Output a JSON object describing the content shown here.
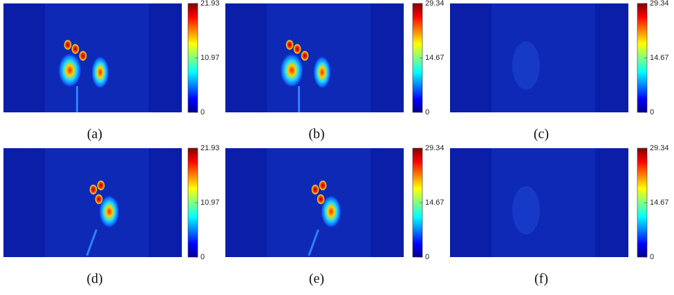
{
  "panels": [
    {
      "caption": "(a)",
      "colorbar_ticks": [
        "21.93",
        "10.97",
        "0"
      ]
    },
    {
      "caption": "(b)",
      "colorbar_ticks": [
        "29.34",
        "14.67",
        "0"
      ]
    },
    {
      "caption": "(c)",
      "colorbar_ticks": [
        "29.34",
        "14.67",
        "0"
      ]
    },
    {
      "caption": "(d)",
      "colorbar_ticks": [
        "21.93",
        "10.97",
        "0"
      ]
    },
    {
      "caption": "(e)",
      "colorbar_ticks": [
        "29.34",
        "14.67",
        "0"
      ]
    },
    {
      "caption": "(f)",
      "colorbar_ticks": [
        "29.34",
        "14.67",
        "0"
      ]
    }
  ]
}
